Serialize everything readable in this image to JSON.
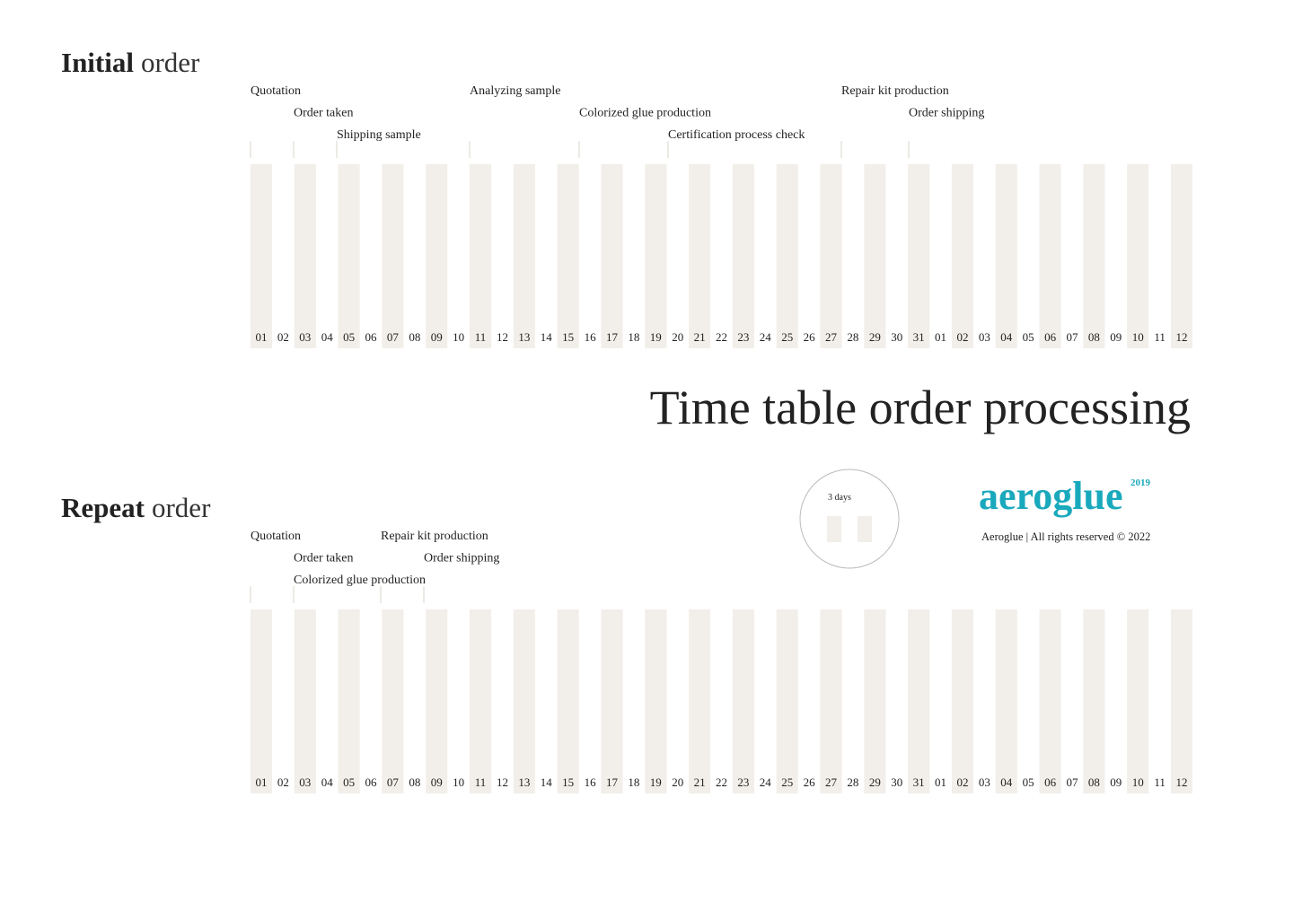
{
  "sections": [
    {
      "title_bold": "Initial",
      "title_rest": "order",
      "milestones": [
        "Quotation",
        "Order taken",
        "Shipping sample",
        "Analyzing sample",
        "Colorized glue production",
        "Certification process check",
        "Repair kit production",
        "Order shipping"
      ],
      "days": [
        "01",
        "02",
        "03",
        "04",
        "05",
        "06",
        "07",
        "08",
        "09",
        "10",
        "11",
        "12",
        "13",
        "14",
        "15",
        "16",
        "17",
        "18",
        "19",
        "20",
        "21",
        "22",
        "23",
        "24",
        "25",
        "26",
        "27",
        "28",
        "29",
        "30",
        "31",
        "01",
        "02",
        "03",
        "04",
        "05",
        "06",
        "07",
        "08",
        "09",
        "10",
        "11",
        "12"
      ]
    },
    {
      "title_bold": "Repeat",
      "title_rest": "order",
      "milestones": [
        "Quotation",
        "Order taken",
        "Colorized glue production",
        "Repair kit production",
        "Order shipping"
      ],
      "days": [
        "01",
        "02",
        "03",
        "04",
        "05",
        "06",
        "07",
        "08",
        "09",
        "10",
        "11",
        "12",
        "13",
        "14",
        "15",
        "16",
        "17",
        "18",
        "19",
        "20",
        "21",
        "22",
        "23",
        "24",
        "25",
        "26",
        "27",
        "28",
        "29",
        "30",
        "31",
        "01",
        "02",
        "03",
        "04",
        "05",
        "06",
        "07",
        "08",
        "09",
        "10",
        "11",
        "12"
      ]
    }
  ],
  "title": "Time table order processing",
  "legend": {
    "label": "3 days"
  },
  "logo": {
    "name": "aeroglue",
    "year": "2019"
  },
  "footer": "Aeroglue | All rights reserved © 2022"
}
